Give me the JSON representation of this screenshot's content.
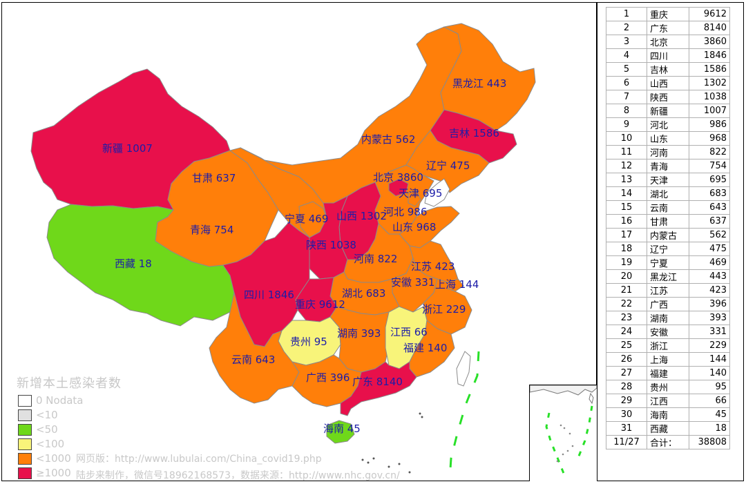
{
  "legend": {
    "title": "新增本土感染者数",
    "items": [
      {
        "label": "0 Nodata",
        "color": "#ffffff"
      },
      {
        "label": "<10",
        "color": "#e0e0e0"
      },
      {
        "label": "<50",
        "color": "#6fd81a"
      },
      {
        "label": "<100",
        "color": "#f8f47a"
      },
      {
        "label": "<1000",
        "color": "#ff7f0a"
      },
      {
        "label": "≥1000",
        "color": "#e8104b"
      }
    ]
  },
  "credits": {
    "web_version": "网页版：http://www.lubulai.com/China_covid19.php",
    "made_by": "陆步来制作，微信号18962168573，数据来源：http://www.nhc.gov.cn/"
  },
  "regions": [
    {
      "name": "新疆",
      "value": 1007,
      "label": "新疆 1007"
    },
    {
      "name": "西藏",
      "value": 18,
      "label": "西藏 18"
    },
    {
      "name": "青海",
      "value": 754,
      "label": "青海 754"
    },
    {
      "name": "甘肃",
      "value": 637,
      "label": "甘肃 637"
    },
    {
      "name": "内蒙古",
      "value": 562,
      "label": "内蒙古 562"
    },
    {
      "name": "黑龙江",
      "value": 443,
      "label": "黑龙江 443"
    },
    {
      "name": "吉林",
      "value": 1586,
      "label": "吉林 1586"
    },
    {
      "name": "辽宁",
      "value": 475,
      "label": "辽宁 475"
    },
    {
      "name": "北京",
      "value": 3860,
      "label": "北京 3860"
    },
    {
      "name": "天津",
      "value": 695,
      "label": "天津 695"
    },
    {
      "name": "河北",
      "value": 986,
      "label": "河北 986"
    },
    {
      "name": "山西",
      "value": 1302,
      "label": "山西 1302"
    },
    {
      "name": "山东",
      "value": 968,
      "label": "山东 968"
    },
    {
      "name": "宁夏",
      "value": 469,
      "label": "宁夏 469"
    },
    {
      "name": "陕西",
      "value": 1038,
      "label": "陕西 1038"
    },
    {
      "name": "河南",
      "value": 822,
      "label": "河南 822"
    },
    {
      "name": "江苏",
      "value": 423,
      "label": "江苏 423"
    },
    {
      "name": "安徽",
      "value": 331,
      "label": "安徽 331"
    },
    {
      "name": "上海",
      "value": 144,
      "label": "上海 144"
    },
    {
      "name": "四川",
      "value": 1846,
      "label": "四川 1846"
    },
    {
      "name": "重庆",
      "value": 9612,
      "label": "重庆 9612"
    },
    {
      "name": "湖北",
      "value": 683,
      "label": "湖北 683"
    },
    {
      "name": "浙江",
      "value": 229,
      "label": "浙江 229"
    },
    {
      "name": "贵州",
      "value": 95,
      "label": "贵州 95"
    },
    {
      "name": "湖南",
      "value": 393,
      "label": "湖南 393"
    },
    {
      "name": "江西",
      "value": 66,
      "label": "江西 66"
    },
    {
      "name": "福建",
      "value": 140,
      "label": "福建 140"
    },
    {
      "name": "云南",
      "value": 643,
      "label": "云南 643"
    },
    {
      "name": "广西",
      "value": 396,
      "label": "广西 396"
    },
    {
      "name": "广东",
      "value": 8140,
      "label": "广东 8140"
    },
    {
      "name": "海南",
      "value": 45,
      "label": "海南 45"
    }
  ],
  "ranking": [
    [
      "1",
      "重庆",
      "9612"
    ],
    [
      "2",
      "广东",
      "8140"
    ],
    [
      "3",
      "北京",
      "3860"
    ],
    [
      "4",
      "四川",
      "1846"
    ],
    [
      "5",
      "吉林",
      "1586"
    ],
    [
      "6",
      "山西",
      "1302"
    ],
    [
      "7",
      "陕西",
      "1038"
    ],
    [
      "8",
      "新疆",
      "1007"
    ],
    [
      "9",
      "河北",
      "986"
    ],
    [
      "10",
      "山东",
      "968"
    ],
    [
      "11",
      "河南",
      "822"
    ],
    [
      "12",
      "青海",
      "754"
    ],
    [
      "13",
      "天津",
      "695"
    ],
    [
      "14",
      "湖北",
      "683"
    ],
    [
      "15",
      "云南",
      "643"
    ],
    [
      "16",
      "甘肃",
      "637"
    ],
    [
      "17",
      "内蒙古",
      "562"
    ],
    [
      "18",
      "辽宁",
      "475"
    ],
    [
      "19",
      "宁夏",
      "469"
    ],
    [
      "20",
      "黑龙江",
      "443"
    ],
    [
      "21",
      "江苏",
      "423"
    ],
    [
      "22",
      "广西",
      "396"
    ],
    [
      "23",
      "湖南",
      "393"
    ],
    [
      "24",
      "安徽",
      "331"
    ],
    [
      "25",
      "浙江",
      "229"
    ],
    [
      "26",
      "上海",
      "144"
    ],
    [
      "27",
      "福建",
      "140"
    ],
    [
      "28",
      "贵州",
      "95"
    ],
    [
      "29",
      "江西",
      "66"
    ],
    [
      "30",
      "海南",
      "45"
    ],
    [
      "31",
      "西藏",
      "18"
    ],
    [
      "11/27",
      "合计：",
      "38808"
    ]
  ]
}
